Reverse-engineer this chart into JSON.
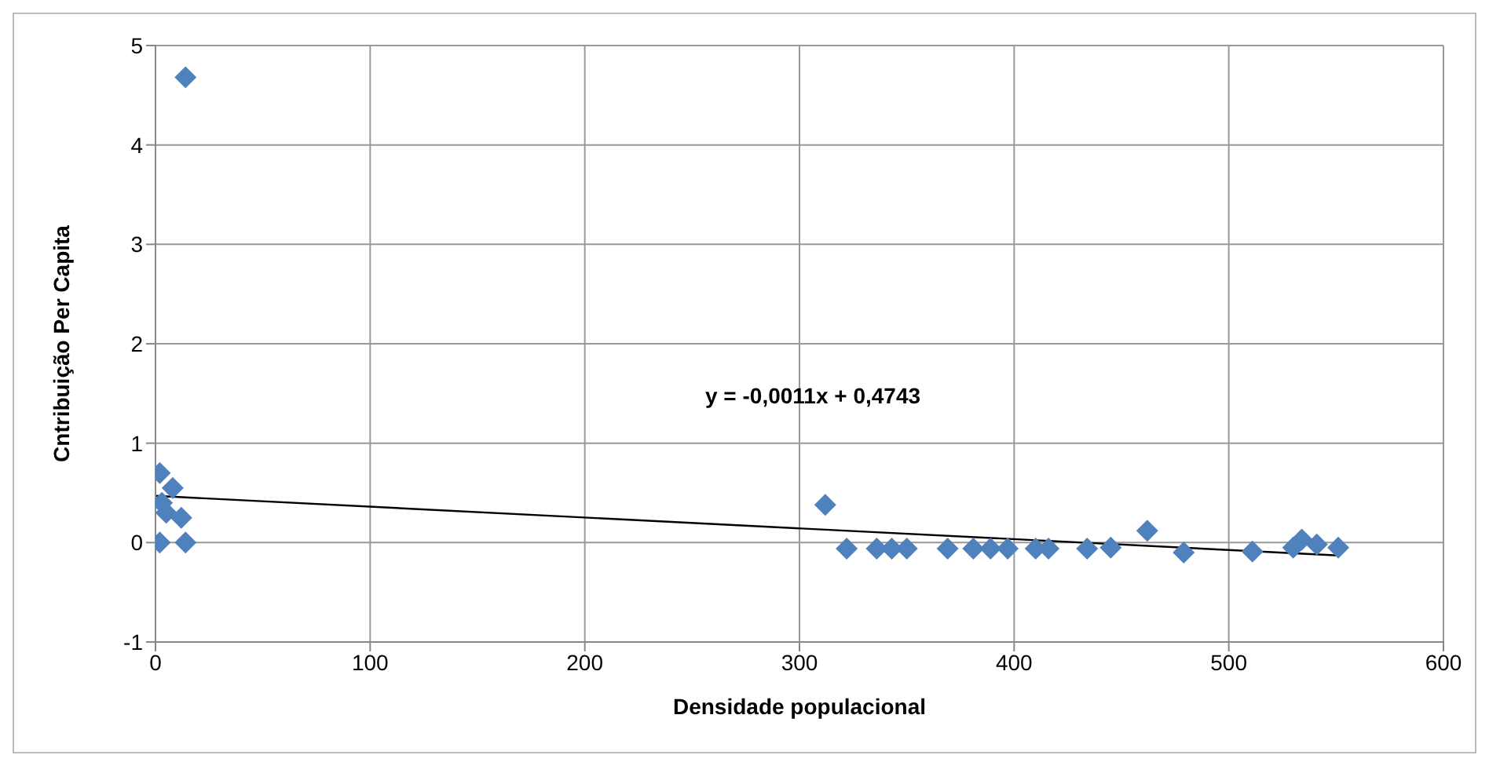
{
  "chart_data": {
    "type": "scatter",
    "xlabel": "Densidade populacional",
    "ylabel": "Cntribuição Per Capita",
    "marker": "diamond",
    "grid": true,
    "xlim": [
      0,
      600
    ],
    "xticks": [
      0,
      100,
      200,
      300,
      400,
      500,
      600
    ],
    "ylim": [
      -1,
      5
    ],
    "yticks": [
      -1,
      0,
      1,
      2,
      3,
      4,
      5
    ],
    "annotations": [
      "y = -0,0011x + 0,4743"
    ],
    "series": [
      {
        "color": "#4f81bd",
        "x": [
          2,
          8,
          3,
          5,
          12,
          2,
          13,
          14,
          14,
          312,
          322,
          336,
          343,
          350,
          369,
          381,
          389,
          397,
          410,
          416,
          434,
          445,
          462,
          479,
          511,
          530,
          534,
          541,
          551
        ],
        "values": [
          0.7,
          0.55,
          0.4,
          0.3,
          0.25,
          0,
          null,
          0,
          4.68,
          0.38,
          -0.06,
          -0.06,
          -0.06,
          -0.06,
          -0.06,
          -0.06,
          -0.06,
          -0.06,
          -0.06,
          -0.06,
          -0.06,
          -0.05,
          0.12,
          -0.1,
          -0.09,
          -0.05,
          0.03,
          -0.02,
          -0.05
        ]
      },
      {
        "type": "line",
        "color": "#000000",
        "x": [
          0,
          551
        ],
        "values": [
          0.47,
          -0.13
        ],
        "marker": "none"
      }
    ]
  }
}
